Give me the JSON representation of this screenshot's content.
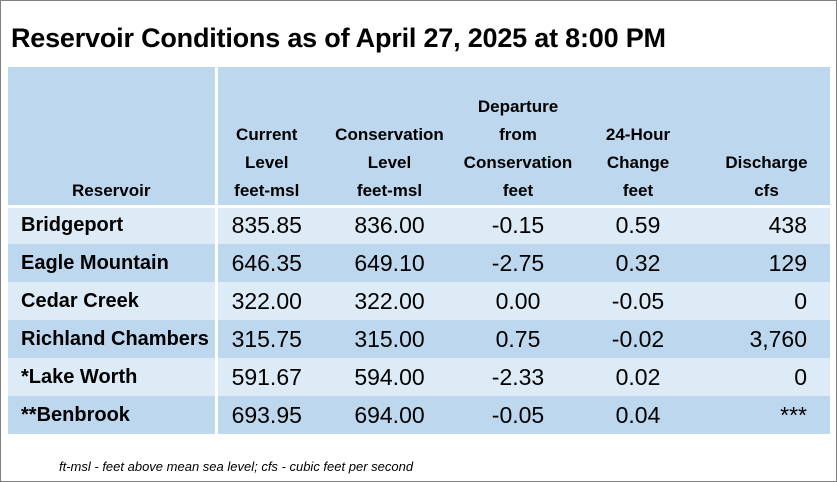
{
  "title": "Reservoir Conditions as of April 27, 2025 at 8:00 PM",
  "columns": [
    {
      "lines": [
        "Reservoir"
      ]
    },
    {
      "lines": [
        "Current",
        "Level",
        "feet-msl"
      ]
    },
    {
      "lines": [
        "Conservation",
        "Level",
        "feet-msl"
      ]
    },
    {
      "lines": [
        "Departure",
        "from",
        "Conservation",
        "feet"
      ]
    },
    {
      "lines": [
        "24-Hour",
        "Change",
        "feet"
      ]
    },
    {
      "lines": [
        "Discharge",
        "cfs"
      ]
    }
  ],
  "rows": [
    {
      "reservoir": "Bridgeport",
      "current": "835.85",
      "conservation": "836.00",
      "departure": "-0.15",
      "change": "0.59",
      "discharge": "438"
    },
    {
      "reservoir": "Eagle Mountain",
      "current": "646.35",
      "conservation": "649.10",
      "departure": "-2.75",
      "change": "0.32",
      "discharge": "129"
    },
    {
      "reservoir": "Cedar Creek",
      "current": "322.00",
      "conservation": "322.00",
      "departure": "0.00",
      "change": "-0.05",
      "discharge": "0"
    },
    {
      "reservoir": "Richland Chambers",
      "current": "315.75",
      "conservation": "315.00",
      "departure": "0.75",
      "change": "-0.02",
      "discharge": "3,760"
    },
    {
      "reservoir": "*Lake Worth",
      "current": "591.67",
      "conservation": "594.00",
      "departure": "-2.33",
      "change": "0.02",
      "discharge": "0"
    },
    {
      "reservoir": "**Benbrook",
      "current": "693.95",
      "conservation": "694.00",
      "departure": "-0.05",
      "change": "0.04",
      "discharge": "***"
    }
  ],
  "footnote": "ft-msl - feet above mean sea level; cfs - cubic feet per second",
  "colors": {
    "header_bg": "#bdd7ee",
    "row_light": "#ddebf7",
    "row_dark": "#bdd7ee"
  }
}
